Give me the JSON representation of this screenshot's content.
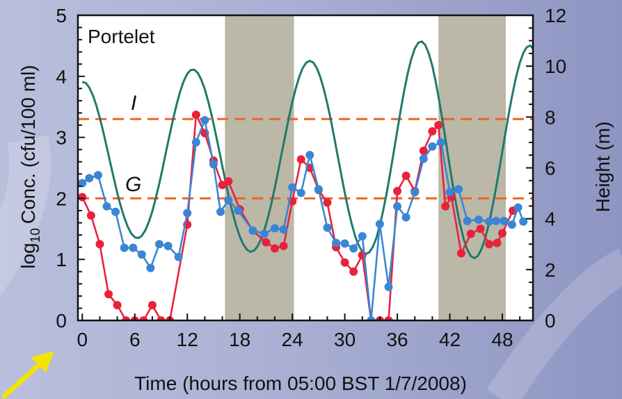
{
  "chart_data": {
    "type": "line",
    "title": "Portelet",
    "xlabel": "Time (hours from 05:00 BST 1/7/2008)",
    "ylabel_left": "Conc. (cfu/100 ml)",
    "ylabel_left_prefix": "log",
    "ylabel_left_subscript": "10",
    "ylabel_right": "Height (m)",
    "xlim": [
      -0.5,
      51.5
    ],
    "ylim_left": [
      0,
      5
    ],
    "ylim_right": [
      0,
      12
    ],
    "x_ticks": [
      0,
      6,
      12,
      18,
      24,
      30,
      36,
      42,
      48
    ],
    "y_left_ticks": [
      0,
      1,
      2,
      3,
      4,
      5
    ],
    "y_right_ticks": [
      0,
      2,
      4,
      6,
      8,
      10,
      12
    ],
    "shaded_periods": [
      {
        "start": 16.3,
        "end": 24.2
      },
      {
        "start": 40.7,
        "end": 48.4
      }
    ],
    "reference_lines": [
      {
        "label": "I",
        "y": 3.3,
        "color": "#ee6622"
      },
      {
        "label": "G",
        "y": 2.0,
        "color": "#ee6622"
      }
    ],
    "series": [
      {
        "color": "#e8223c",
        "axis": "left",
        "marker": "circle",
        "x": [
          0,
          1,
          2,
          3,
          4,
          5,
          6,
          7,
          8,
          9,
          10,
          12,
          13,
          14,
          15,
          16,
          16.7,
          18,
          19.5,
          21,
          22,
          23,
          24,
          25,
          26,
          27,
          28,
          29,
          30,
          31,
          32,
          33,
          34,
          35,
          36,
          37,
          38,
          39,
          40,
          40.7,
          41.5,
          42.2,
          43.3,
          44.4,
          45.5,
          46.5,
          47.4,
          48,
          49.2,
          50
        ],
        "values": [
          2.02,
          1.72,
          1.25,
          0.43,
          0.25,
          0.0,
          0.0,
          0.0,
          0.25,
          0.0,
          0.0,
          1.57,
          3.37,
          3.07,
          2.62,
          2.22,
          2.28,
          1.82,
          1.47,
          1.28,
          1.18,
          1.22,
          1.95,
          2.64,
          2.5,
          2.14,
          1.93,
          1.2,
          0.95,
          0.8,
          1.07,
          0.0,
          0.0,
          0.0,
          2.12,
          2.37,
          2.12,
          2.78,
          3.1,
          3.2,
          1.87,
          2.02,
          1.1,
          1.42,
          1.5,
          1.25,
          1.27,
          1.43,
          1.8,
          null
        ]
      },
      {
        "color": "#3a86d4",
        "axis": "left",
        "marker": "circle",
        "x": [
          0,
          0.8,
          1.8,
          2.8,
          3.8,
          4.8,
          5.8,
          6.8,
          7.8,
          8.8,
          9.8,
          11,
          12,
          13,
          14,
          15,
          15.8,
          16.7,
          17.8,
          19.5,
          20.8,
          22,
          23,
          24,
          25,
          26,
          27,
          28,
          29,
          30,
          31,
          32,
          33,
          34,
          35,
          36,
          37,
          38,
          39,
          40,
          41,
          42,
          43,
          44,
          45.3,
          46.5,
          47.3,
          48.2,
          49.1,
          49.8,
          50.4
        ],
        "values": [
          2.25,
          2.33,
          2.38,
          1.87,
          1.78,
          1.19,
          1.19,
          1.08,
          0.86,
          1.25,
          1.22,
          1.04,
          1.76,
          2.92,
          3.28,
          2.56,
          1.78,
          1.97,
          1.8,
          1.47,
          1.42,
          1.51,
          1.49,
          2.18,
          2.09,
          2.71,
          2.15,
          1.52,
          1.27,
          1.26,
          1.18,
          1.38,
          0.0,
          1.58,
          0.55,
          1.87,
          1.69,
          2.1,
          2.65,
          2.85,
          2.92,
          2.1,
          2.15,
          1.63,
          1.65,
          1.62,
          1.63,
          1.63,
          1.57,
          1.85,
          1.62
        ]
      },
      {
        "color": "#1f7a6c",
        "axis": "right",
        "marker": "none",
        "x": [
          0,
          0.4,
          0.8,
          1.2,
          1.6,
          2,
          2.4,
          2.8,
          3.2,
          3.6,
          4,
          4.4,
          4.8,
          5.2,
          5.6,
          6,
          6.4,
          6.8,
          7.2,
          7.6,
          8,
          8.4,
          8.8,
          9.2,
          9.6,
          10,
          10.4,
          10.8,
          11.2,
          11.6,
          12,
          12.4,
          12.8,
          13.2,
          13.6,
          14,
          14.4,
          14.8,
          15.2,
          15.6,
          16,
          16.4,
          16.8,
          17.2,
          17.6,
          18,
          18.4,
          18.8,
          19.2,
          19.6,
          20,
          20.4,
          20.8,
          21.2,
          21.6,
          22,
          22.4,
          22.8,
          23.2,
          23.6,
          24,
          24.4,
          24.8,
          25.2,
          25.6,
          26,
          26.4,
          26.8,
          27.2,
          27.6,
          28,
          28.4,
          28.8,
          29.2,
          29.6,
          30,
          30.4,
          30.8,
          31.2,
          31.6,
          32,
          32.4,
          32.8,
          33.2,
          33.6,
          34,
          34.4,
          34.8,
          35.2,
          35.6,
          36,
          36.4,
          36.8,
          37.2,
          37.6,
          38,
          38.4,
          38.8,
          39.2,
          39.6,
          40,
          40.4,
          40.8,
          41.2,
          41.6,
          42,
          42.4,
          42.8,
          43.2,
          43.6,
          44,
          44.4,
          44.8,
          45.2,
          45.6,
          46,
          46.4,
          46.8,
          47.2,
          47.6,
          48,
          48.4,
          48.8,
          49.2,
          49.6,
          50,
          50.4,
          50.8,
          51.2,
          51.5
        ],
        "values": [
          9.38,
          9.34,
          9.16,
          8.86,
          8.46,
          7.97,
          7.41,
          6.81,
          6.2,
          5.59,
          5.01,
          4.49,
          4.04,
          3.68,
          3.42,
          3.27,
          3.24,
          3.33,
          3.54,
          3.87,
          4.29,
          4.81,
          5.39,
          6.02,
          6.68,
          7.33,
          7.95,
          8.52,
          9.02,
          9.42,
          9.7,
          9.85,
          9.86,
          9.73,
          9.47,
          9.09,
          8.6,
          8.04,
          7.41,
          6.75,
          6.07,
          5.41,
          4.78,
          4.21,
          3.71,
          3.3,
          2.99,
          2.79,
          2.7,
          2.74,
          2.9,
          3.17,
          3.55,
          4.03,
          4.59,
          5.22,
          5.89,
          6.59,
          7.29,
          7.96,
          8.58,
          9.13,
          9.59,
          9.93,
          10.14,
          10.21,
          10.14,
          9.92,
          9.57,
          9.1,
          8.53,
          7.89,
          7.18,
          6.45,
          5.72,
          5.01,
          4.36,
          3.78,
          3.3,
          2.94,
          2.71,
          2.62,
          2.68,
          2.89,
          3.24,
          3.73,
          4.34,
          5.04,
          5.82,
          6.64,
          7.48,
          8.3,
          9.06,
          9.74,
          10.29,
          10.69,
          10.92,
          10.97,
          10.83,
          10.5,
          10.01,
          9.37,
          8.62,
          7.79,
          6.92,
          6.04,
          5.2,
          4.42,
          3.74,
          3.19,
          2.78,
          2.53,
          2.45,
          2.54,
          2.79,
          3.18,
          3.71,
          4.34,
          5.06,
          5.84,
          6.65,
          7.46,
          8.25,
          8.97,
          9.61,
          10.13,
          10.52,
          10.75,
          10.81,
          10.7
        ]
      }
    ]
  }
}
